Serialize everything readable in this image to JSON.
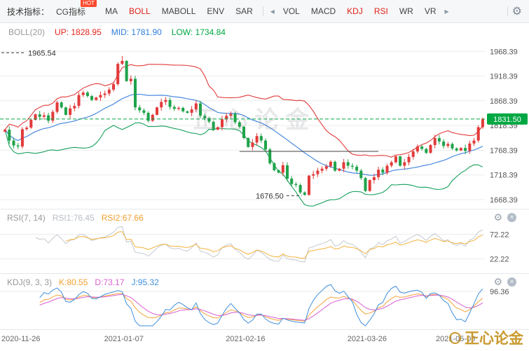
{
  "toolbar": {
    "label": "技术指标：",
    "main_tabs": [
      {
        "label": "CG指标",
        "badge": "HOT",
        "active": false
      },
      {
        "label": "MA",
        "active": false
      },
      {
        "label": "BOLL",
        "active": true
      },
      {
        "label": "MABOLL",
        "active": false
      },
      {
        "label": "ENV",
        "active": false
      },
      {
        "label": "SAR",
        "active": false
      }
    ],
    "sub_tabs": [
      {
        "label": "VOL",
        "active": false
      },
      {
        "label": "MACD",
        "active": false
      },
      {
        "label": "KDJ",
        "active": true
      },
      {
        "label": "RSI",
        "active": true
      },
      {
        "label": "WR",
        "active": false
      },
      {
        "label": "VR",
        "active": false
      }
    ],
    "icons": {
      "left_arrow": "◂",
      "right_arrow": "▸",
      "gear": "⚙",
      "close": "×"
    }
  },
  "indicator_bar": {
    "name": "BOLL(20)",
    "up": "UP: 1828.95",
    "mid": "MID: 1781.90",
    "low": "LOW: 1734.84"
  },
  "rsi_panel": {
    "name": "RSI(7, 14)",
    "rsi1": "RSI1:76.45",
    "rsi2": "RSI2:67.66",
    "ticks": [
      72.22,
      22.22
    ]
  },
  "kdj_panel": {
    "name": "KDJ(9, 3, 3)",
    "k": "K:80.55",
    "d": "D:73.17",
    "j": "J:95.32",
    "ticks": [
      96.36
    ]
  },
  "watermark": {
    "center": "正心论金",
    "bottom_right": "正心论金"
  },
  "chart_data": {
    "type": "candlestick",
    "x_labels": [
      "2020-11-26",
      "2021-01-07",
      "2021-02-16",
      "2021-03-26",
      "2021-05-06"
    ],
    "x_label_indices": [
      0,
      28,
      56,
      84,
      110
    ],
    "y_ticks": [
      1968.39,
      1918.39,
      1868.39,
      1818.39,
      1768.39,
      1718.39,
      1668.39
    ],
    "ylim": [
      1650,
      1990
    ],
    "current_price": 1831.5,
    "annotations": {
      "high": 1965.54,
      "low": 1676.5,
      "spike_high": 1959,
      "support_line": {
        "price": 1766,
        "from_index": 54,
        "to_index": 86
      }
    },
    "first_open": 1806,
    "closes": [
      1810,
      1788,
      1778,
      1776,
      1811,
      1814,
      1830,
      1841,
      1836,
      1839,
      1828,
      1846,
      1865,
      1855,
      1840,
      1853,
      1858,
      1880,
      1885,
      1878,
      1870,
      1875,
      1880,
      1883,
      1891,
      1902,
      1943,
      1949,
      1908,
      1913,
      1855,
      1849,
      1844,
      1828,
      1840,
      1855,
      1866,
      1870,
      1856,
      1852,
      1854,
      1847,
      1844,
      1851,
      1863,
      1838,
      1833,
      1826,
      1810,
      1815,
      1831,
      1838,
      1842,
      1825,
      1816,
      1793,
      1775,
      1784,
      1797,
      1788,
      1770,
      1742,
      1728,
      1723,
      1738,
      1711,
      1700,
      1698,
      1683,
      1678,
      1717,
      1720,
      1727,
      1731,
      1736,
      1745,
      1727,
      1731,
      1744,
      1737,
      1735,
      1727,
      1712,
      1686,
      1708,
      1714,
      1729,
      1723,
      1737,
      1744,
      1756,
      1737,
      1744,
      1755,
      1766,
      1776,
      1771,
      1763,
      1779,
      1793,
      1786,
      1777,
      1781,
      1772,
      1768,
      1773,
      1767,
      1782,
      1788,
      1815,
      1831.5
    ],
    "colors": {
      "up": "#e23b3b",
      "down": "#1fa34a",
      "boll_up": "#e23b3b",
      "boll_mid": "#3a7fdc",
      "boll_low": "#17a05c",
      "price_line": "#00a843",
      "grid": "#ececec",
      "axis_text": "#555",
      "rsi1": "#c4cad1",
      "rsi2": "#f3b23e",
      "k": "#f3a43e",
      "d": "#d95fd0",
      "j": "#3e8fdd",
      "support": "#4a4a4a"
    }
  }
}
